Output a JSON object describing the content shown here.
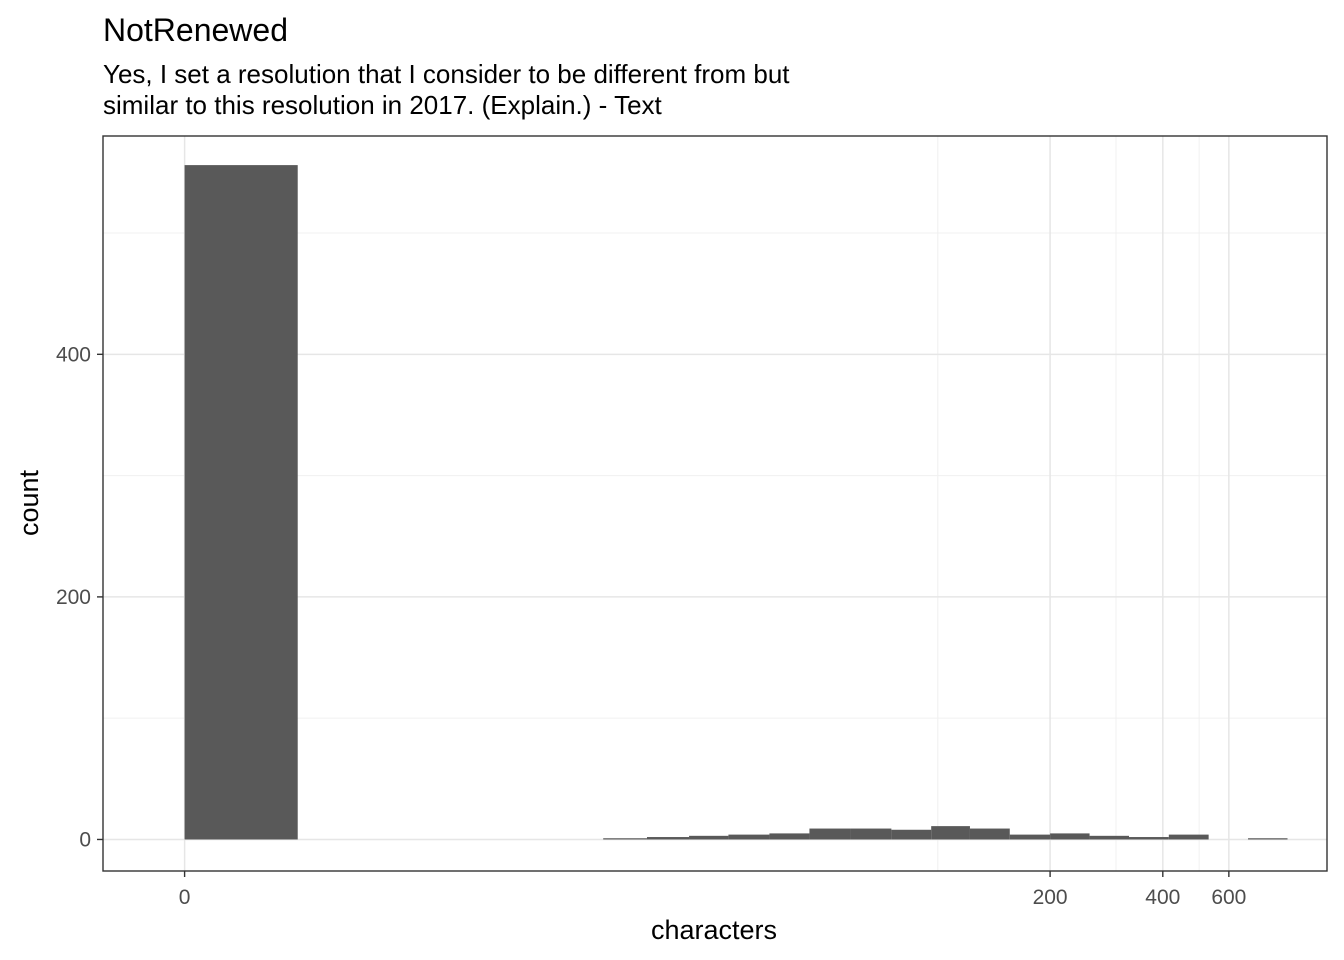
{
  "chart_data": {
    "type": "bar",
    "title": "NotRenewed",
    "subtitle_lines": [
      "Yes, I set a resolution that I consider to be different from but",
      "similar to this resolution in 2017. (Explain.) - Text"
    ],
    "xlabel": "characters",
    "ylabel": "count",
    "x_scale": "log1p",
    "x_ticks": [
      0,
      200,
      400,
      600
    ],
    "x_tick_labels": [
      "0",
      "200",
      "400",
      "600"
    ],
    "x_minor_breaks": [
      100,
      300,
      500
    ],
    "y_ticks": [
      0,
      200,
      400
    ],
    "y_tick_labels": [
      "0",
      "200",
      "400"
    ],
    "y_minor_breaks": [
      100,
      300,
      500
    ],
    "ylim": [
      -26,
      580
    ],
    "grid": true,
    "bar_color": "#595959",
    "bins": [
      {
        "x_start": 0,
        "x_end": 1,
        "count": 556
      },
      {
        "x_start": 12,
        "x_end": 16,
        "count": 1
      },
      {
        "x_start": 16,
        "x_end": 21,
        "count": 2
      },
      {
        "x_start": 21,
        "x_end": 27,
        "count": 3
      },
      {
        "x_start": 27,
        "x_end": 35,
        "count": 4
      },
      {
        "x_start": 35,
        "x_end": 45,
        "count": 5
      },
      {
        "x_start": 45,
        "x_end": 58,
        "count": 9
      },
      {
        "x_start": 58,
        "x_end": 75,
        "count": 9
      },
      {
        "x_start": 75,
        "x_end": 96,
        "count": 8
      },
      {
        "x_start": 96,
        "x_end": 122,
        "count": 11
      },
      {
        "x_start": 122,
        "x_end": 156,
        "count": 9
      },
      {
        "x_start": 156,
        "x_end": 200,
        "count": 4
      },
      {
        "x_start": 200,
        "x_end": 255,
        "count": 5
      },
      {
        "x_start": 255,
        "x_end": 325,
        "count": 3
      },
      {
        "x_start": 325,
        "x_end": 415,
        "count": 2
      },
      {
        "x_start": 415,
        "x_end": 530,
        "count": 4
      },
      {
        "x_start": 530,
        "x_end": 675,
        "count": 0
      },
      {
        "x_start": 675,
        "x_end": 860,
        "count": 1
      }
    ]
  }
}
